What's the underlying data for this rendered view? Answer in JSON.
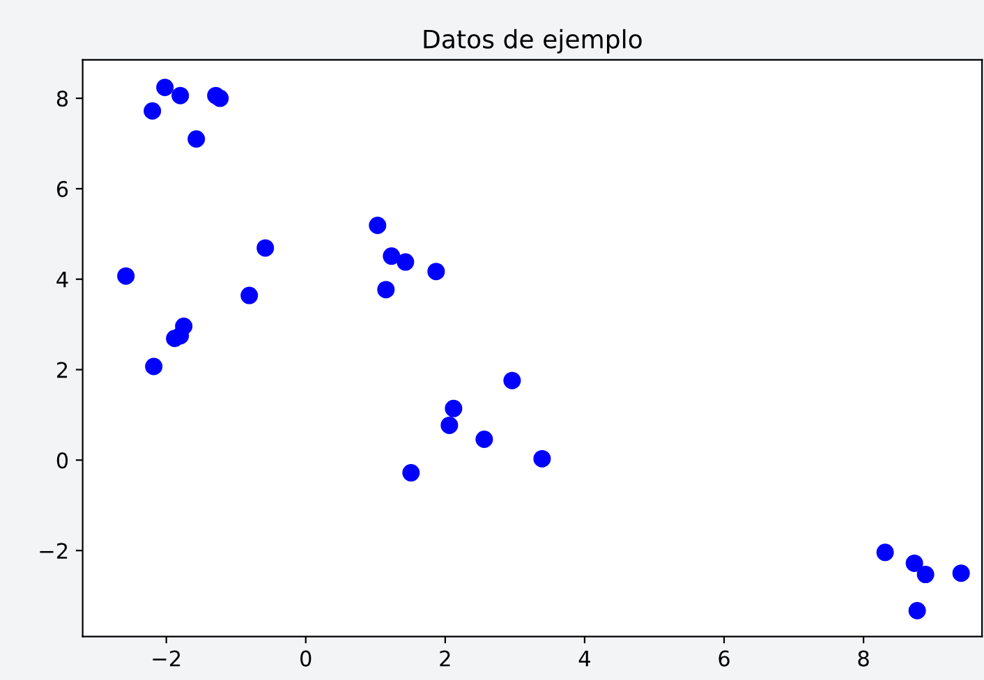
{
  "chart_data": {
    "type": "scatter",
    "title": "Datos de ejemplo",
    "marker": "circle",
    "grid": false,
    "xlim": [
      -3.2,
      9.7
    ],
    "ylim": [
      -3.9,
      8.85
    ],
    "xticks": [
      {
        "value": -2,
        "label": "−2"
      },
      0,
      2,
      4,
      6,
      8
    ],
    "yticks": [
      {
        "value": -2,
        "label": "−2"
      },
      0,
      2,
      4,
      6,
      8
    ],
    "series": [
      {
        "color": "#0000ff",
        "x": [
          -2.58,
          -2.2,
          -2.02,
          -1.8,
          -1.57,
          -1.29,
          -1.23,
          -2.18,
          -1.88,
          -1.8,
          -1.75,
          -0.81,
          -0.58,
          1.03,
          1.23,
          1.43,
          1.15,
          1.87,
          2.12,
          2.06,
          2.96,
          2.56,
          3.39,
          1.51,
          8.31,
          8.73,
          8.89,
          8.77,
          9.4
        ],
        "values": [
          4.07,
          7.72,
          8.24,
          8.06,
          7.1,
          8.06,
          8.0,
          2.07,
          2.69,
          2.75,
          2.96,
          3.64,
          4.69,
          5.19,
          4.51,
          4.38,
          3.77,
          4.17,
          1.14,
          0.77,
          1.76,
          0.46,
          0.03,
          -0.28,
          -2.04,
          -2.28,
          -2.53,
          -3.33,
          -2.5
        ]
      }
    ]
  }
}
